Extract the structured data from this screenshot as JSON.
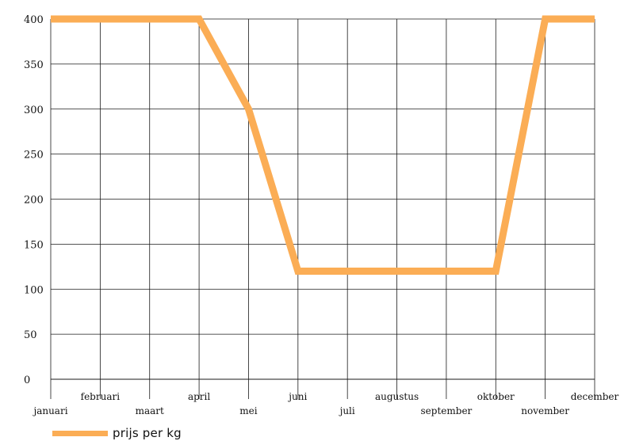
{
  "chart_data": {
    "type": "line",
    "categories": [
      "januari",
      "februari",
      "maart",
      "april",
      "mei",
      "juni",
      "juli",
      "augustus",
      "september",
      "oktober",
      "november",
      "december"
    ],
    "series": [
      {
        "name": "prijs per kg",
        "values": [
          400,
          400,
          400,
          400,
          300,
          120,
          120,
          120,
          120,
          120,
          400,
          400
        ]
      }
    ],
    "yticks": [
      "0",
      "50",
      "100",
      "150",
      "200",
      "250",
      "300",
      "350",
      "400"
    ],
    "ylim": [
      0,
      400
    ],
    "grid": true,
    "legend_position": "bottom-left",
    "colors": {
      "series": "#fbad55",
      "grid": "#1a1a1a"
    }
  }
}
